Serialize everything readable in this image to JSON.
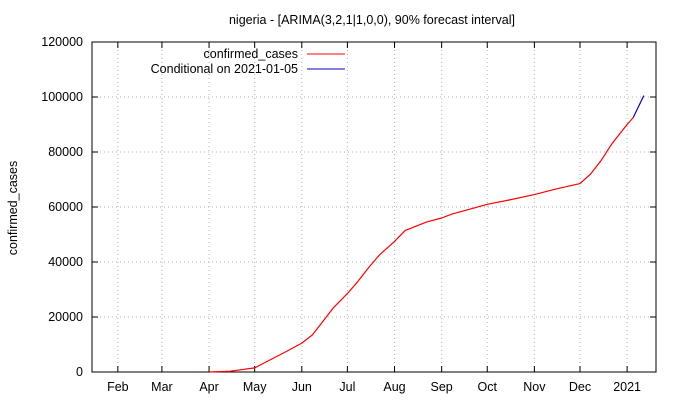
{
  "chart_data": {
    "type": "line",
    "title": "nigeria -  [ARIMA(3,2,1|1,0,0), 90% forecast interval]",
    "xlabel": "",
    "ylabel": "confirmed_cases",
    "ylim": [
      0,
      120000
    ],
    "y_ticks": [
      0,
      20000,
      40000,
      60000,
      80000,
      100000,
      120000
    ],
    "x_tick_labels": [
      "Feb",
      "Mar",
      "Apr",
      "May",
      "Jun",
      "Jul",
      "Aug",
      "Sep",
      "Oct",
      "Nov",
      "Dec",
      "2021"
    ],
    "x_tick_dates": [
      "2020-02-01",
      "2020-03-01",
      "2020-04-01",
      "2020-05-01",
      "2020-06-01",
      "2020-07-01",
      "2020-08-01",
      "2020-09-01",
      "2020-10-01",
      "2020-11-01",
      "2020-12-01",
      "2021-01-01"
    ],
    "xlim": [
      "2020-01-15",
      "2021-01-20"
    ],
    "grid": true,
    "legend_position": "top-left",
    "series": [
      {
        "name": "confirmed_cases",
        "color": "#ff0000",
        "x": [
          "2020-04-01",
          "2020-04-15",
          "2020-05-01",
          "2020-05-08",
          "2020-05-15",
          "2020-05-22",
          "2020-06-01",
          "2020-06-08",
          "2020-06-15",
          "2020-06-22",
          "2020-07-01",
          "2020-07-08",
          "2020-07-15",
          "2020-07-22",
          "2020-08-01",
          "2020-08-08",
          "2020-08-15",
          "2020-08-22",
          "2020-09-01",
          "2020-09-08",
          "2020-09-15",
          "2020-10-01",
          "2020-10-15",
          "2020-11-01",
          "2020-11-15",
          "2020-12-01",
          "2020-12-08",
          "2020-12-15",
          "2020-12-22",
          "2021-01-01",
          "2021-01-05"
        ],
        "y": [
          0,
          300,
          1500,
          3500,
          5500,
          7500,
          10500,
          13500,
          18500,
          23500,
          28500,
          33000,
          38000,
          42500,
          47500,
          51500,
          53000,
          54500,
          56000,
          57500,
          58500,
          61000,
          62500,
          64500,
          66500,
          68500,
          72000,
          77000,
          83000,
          90000,
          92500
        ]
      },
      {
        "name": "Conditional on 2021-01-05",
        "color": "#0000cc",
        "x": [
          "2021-01-05",
          "2021-01-08",
          "2021-01-12"
        ],
        "y": [
          92500,
          96000,
          100500
        ]
      }
    ]
  }
}
